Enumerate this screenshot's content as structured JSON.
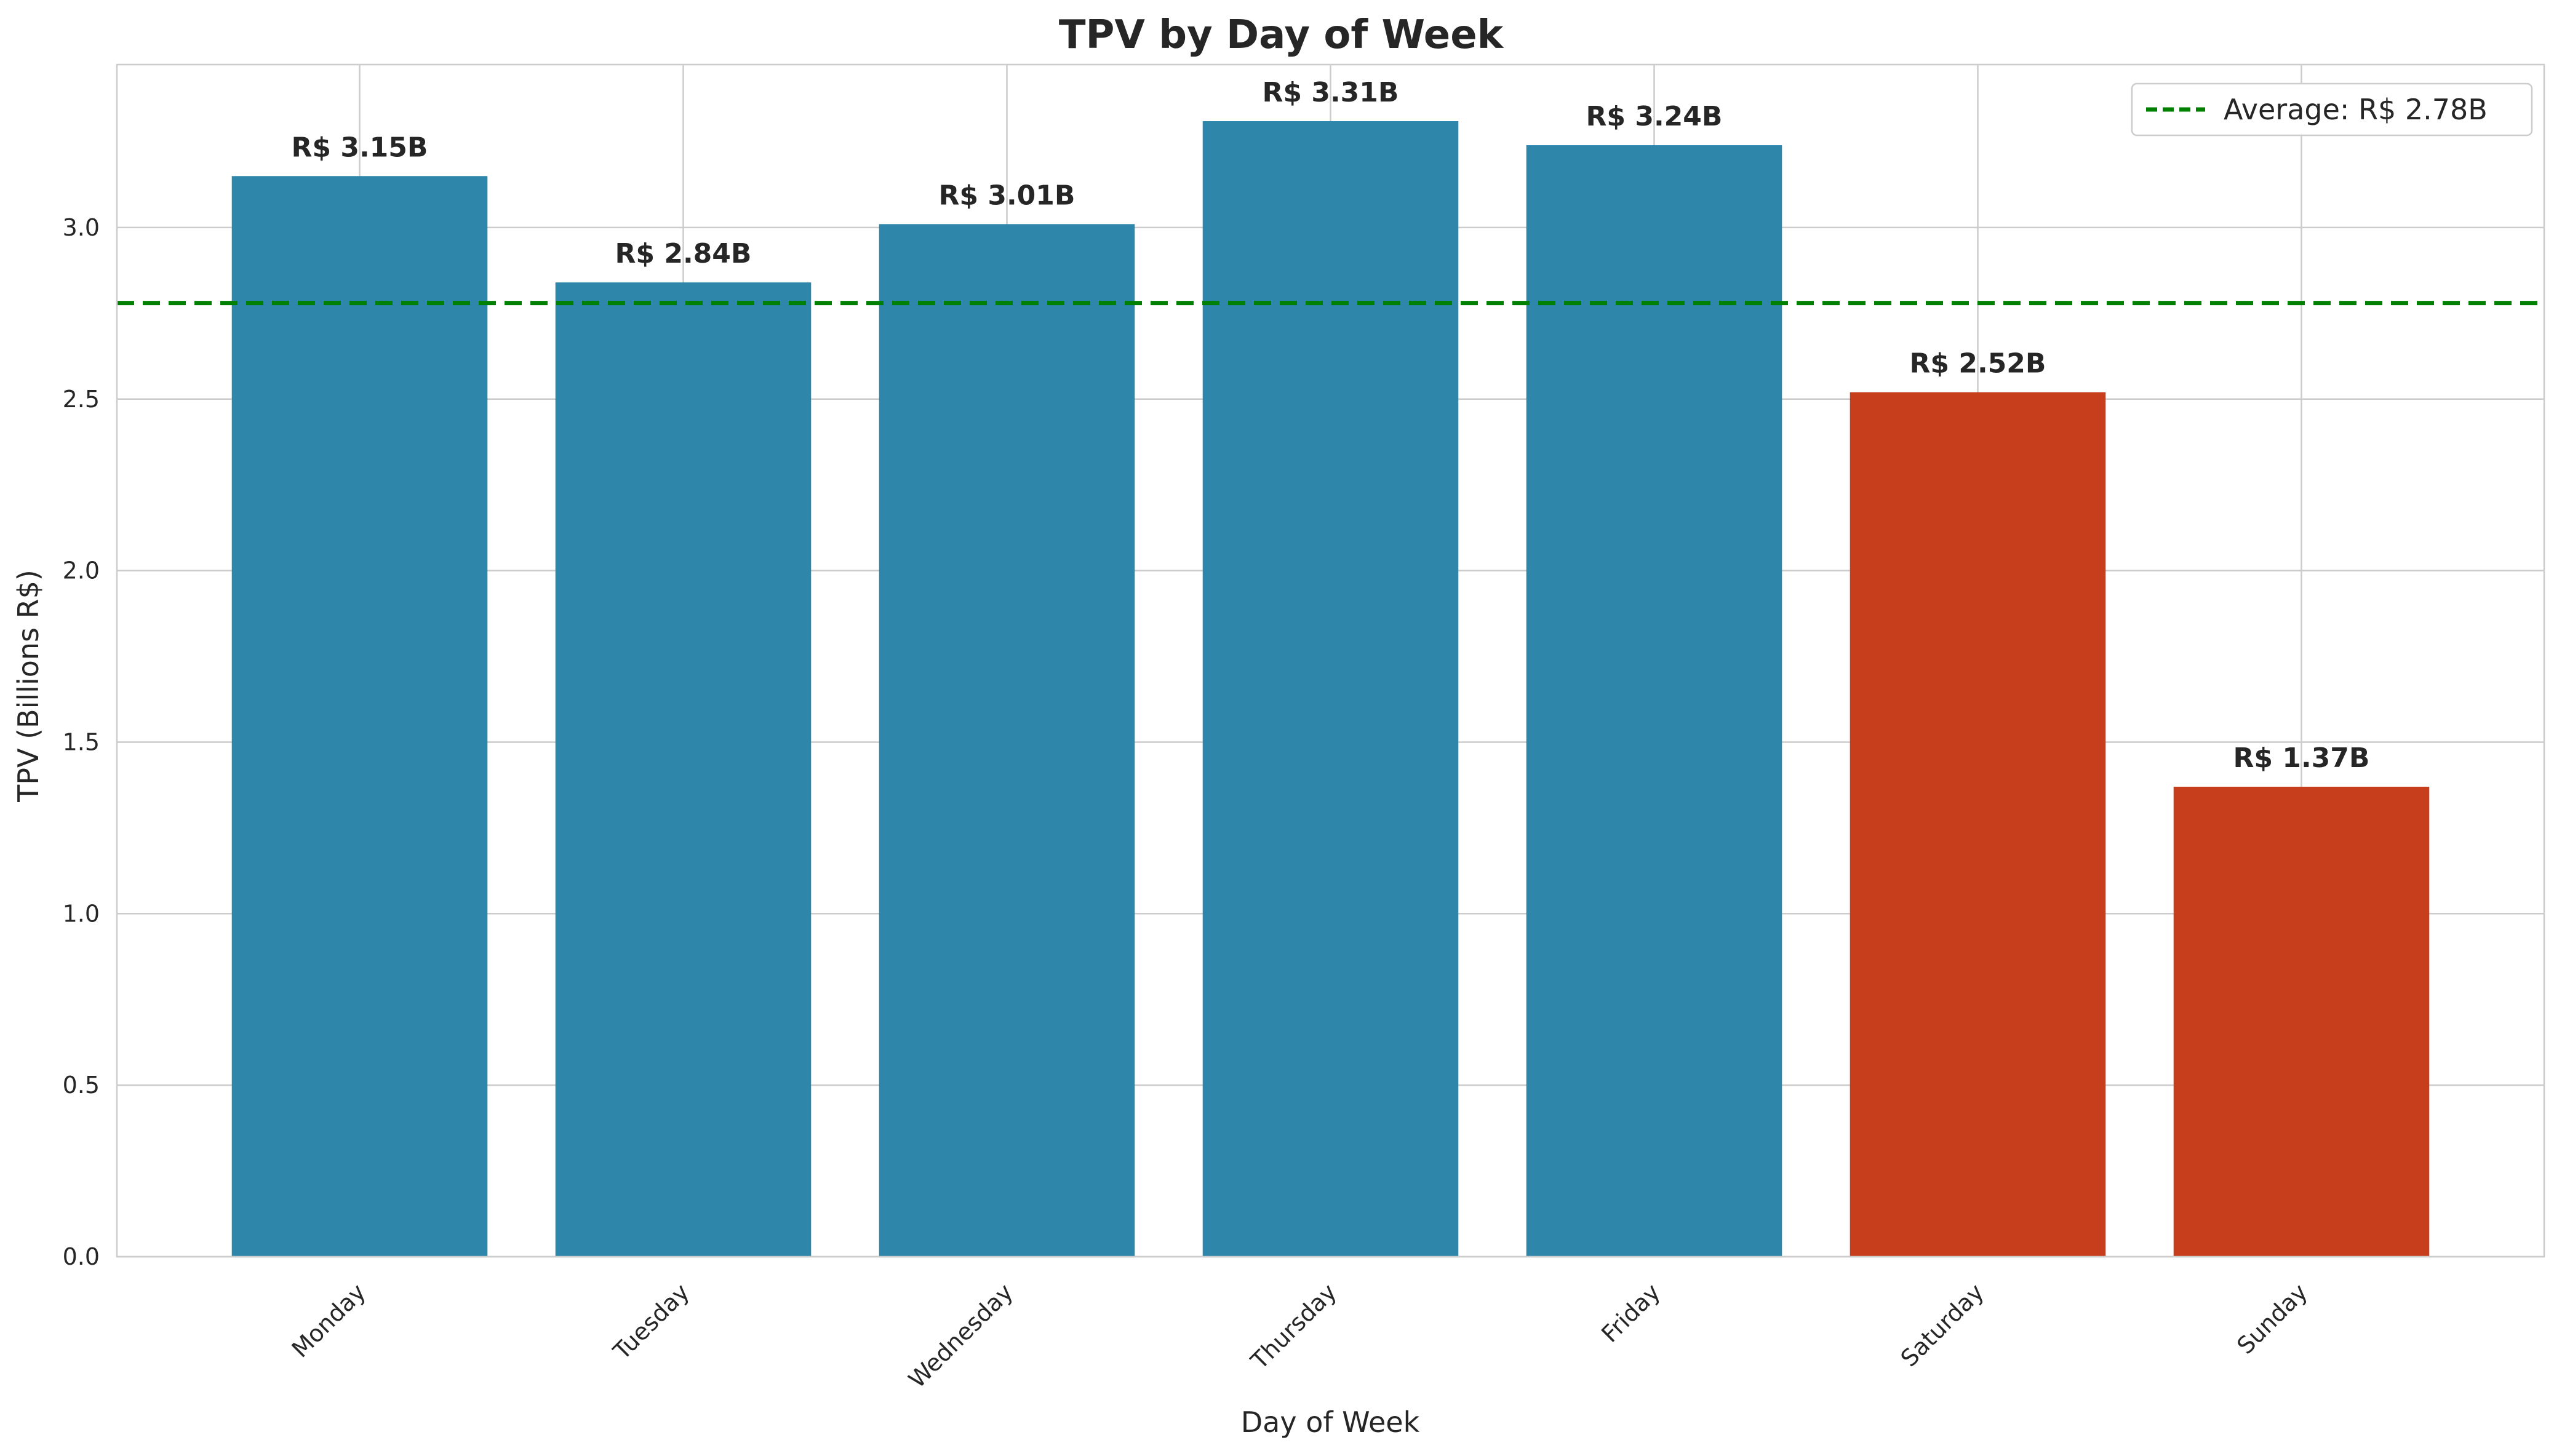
{
  "chart_data": {
    "type": "bar",
    "title": "TPV by Day of Week",
    "xlabel": "Day of Week",
    "ylabel": "TPV (Billions R$)",
    "categories": [
      "Monday",
      "Tuesday",
      "Wednesday",
      "Thursday",
      "Friday",
      "Saturday",
      "Sunday"
    ],
    "values": [
      3.15,
      2.84,
      3.01,
      3.31,
      3.24,
      2.52,
      1.37
    ],
    "data_labels": [
      "R$ 3.15B",
      "R$ 2.84B",
      "R$ 3.01B",
      "R$ 3.31B",
      "R$ 3.24B",
      "R$ 2.52B",
      "R$ 1.37B"
    ],
    "bar_colors": [
      "#2e86ab",
      "#2e86ab",
      "#2e86ab",
      "#2e86ab",
      "#2e86ab",
      "#c73e1d",
      "#c73e1d"
    ],
    "ylim": [
      0,
      3.475
    ],
    "yticks": [
      0.0,
      0.5,
      1.0,
      1.5,
      2.0,
      2.5,
      3.0
    ],
    "ytick_labels": [
      "0.0",
      "0.5",
      "1.0",
      "1.5",
      "2.0",
      "2.5",
      "3.0"
    ],
    "reference_line": {
      "value": 2.78,
      "label": "Average: R$ 2.78B",
      "color": "#008000",
      "style": "dashed"
    },
    "grid": true,
    "legend_position": "top-right"
  }
}
